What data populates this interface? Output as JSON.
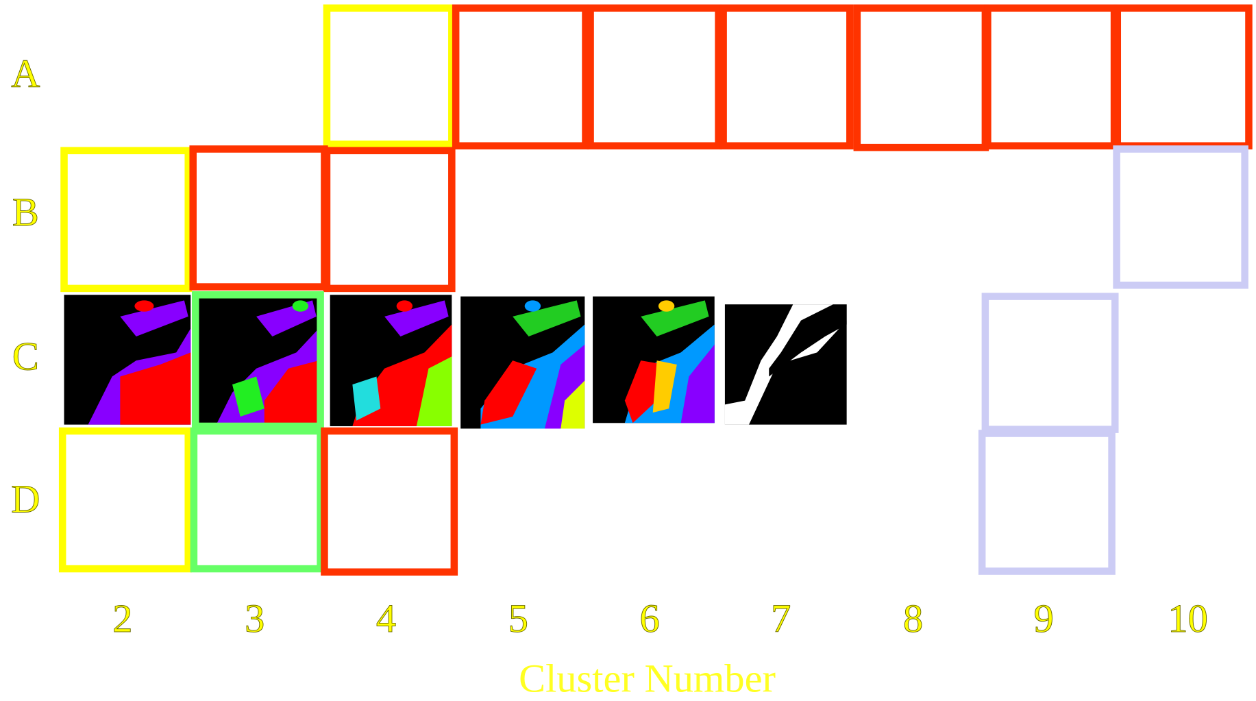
{
  "row_labels": [
    "A",
    "B",
    "C",
    "D"
  ],
  "column_labels": [
    "2",
    "3",
    "4",
    "5",
    "6",
    "7",
    "8",
    "9",
    "10"
  ],
  "axis_title": "Cluster Number"
}
